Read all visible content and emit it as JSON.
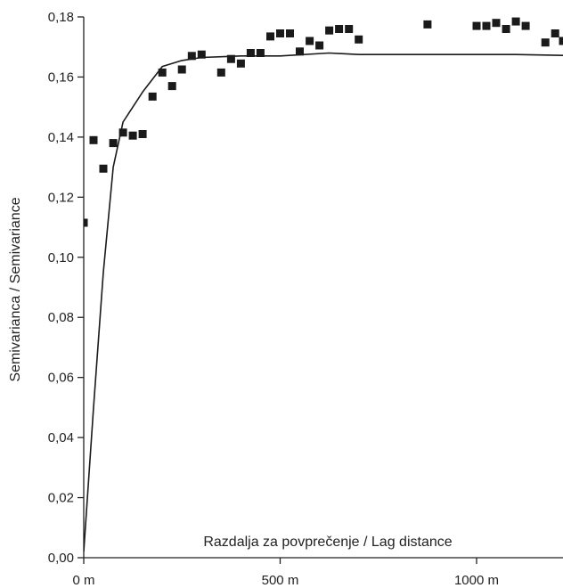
{
  "chart_data": {
    "type": "scatter",
    "title": "",
    "xlabel": "Razdalja za povprečenje / Lag distance",
    "ylabel": "Semivarianca / Semivariance",
    "xlim": [
      0,
      1220
    ],
    "ylim": [
      0,
      0.18
    ],
    "x_ticks": [
      {
        "value": 0,
        "label": "0 m"
      },
      {
        "value": 500,
        "label": "500 m"
      },
      {
        "value": 1000,
        "label": "1000 m"
      }
    ],
    "y_ticks": [
      {
        "value": 0.0,
        "label": "0,00"
      },
      {
        "value": 0.02,
        "label": "0,02"
      },
      {
        "value": 0.04,
        "label": "0,04"
      },
      {
        "value": 0.06,
        "label": "0,06"
      },
      {
        "value": 0.08,
        "label": "0,08"
      },
      {
        "value": 0.1,
        "label": "0,10"
      },
      {
        "value": 0.12,
        "label": "0,12"
      },
      {
        "value": 0.14,
        "label": "0,14"
      },
      {
        "value": 0.16,
        "label": "0,16"
      },
      {
        "value": 0.18,
        "label": "0,18"
      }
    ],
    "grid": false,
    "series": [
      {
        "kind": "points",
        "color": "#1a1a1a",
        "x": [
          0,
          25,
          50,
          75,
          100,
          125,
          150,
          175,
          200,
          225,
          250,
          275,
          300,
          350,
          375,
          400,
          425,
          450,
          475,
          500,
          525,
          550,
          575,
          600,
          625,
          650,
          675,
          700,
          875,
          1000,
          1025,
          1050,
          1075,
          1100,
          1125,
          1175,
          1200,
          1220
        ],
        "y": [
          0.1115,
          0.139,
          0.1295,
          0.138,
          0.1415,
          0.1405,
          0.141,
          0.1535,
          0.1615,
          0.157,
          0.1625,
          0.167,
          0.1675,
          0.1615,
          0.166,
          0.1645,
          0.168,
          0.168,
          0.1735,
          0.1745,
          0.1745,
          0.1685,
          0.172,
          0.1705,
          0.1755,
          0.176,
          0.176,
          0.1725,
          0.1775,
          0.177,
          0.177,
          0.178,
          0.176,
          0.1785,
          0.177,
          0.1715,
          0.1745,
          0.172
        ]
      },
      {
        "kind": "line",
        "color": "#1a1a1a",
        "x": [
          0,
          25,
          50,
          75,
          100,
          150,
          200,
          250,
          300,
          400,
          500,
          625,
          700,
          900,
          1100,
          1220
        ],
        "y": [
          0.002,
          0.05,
          0.095,
          0.13,
          0.145,
          0.155,
          0.1635,
          0.1655,
          0.1665,
          0.167,
          0.167,
          0.168,
          0.1675,
          0.1675,
          0.1675,
          0.1672
        ]
      }
    ]
  }
}
